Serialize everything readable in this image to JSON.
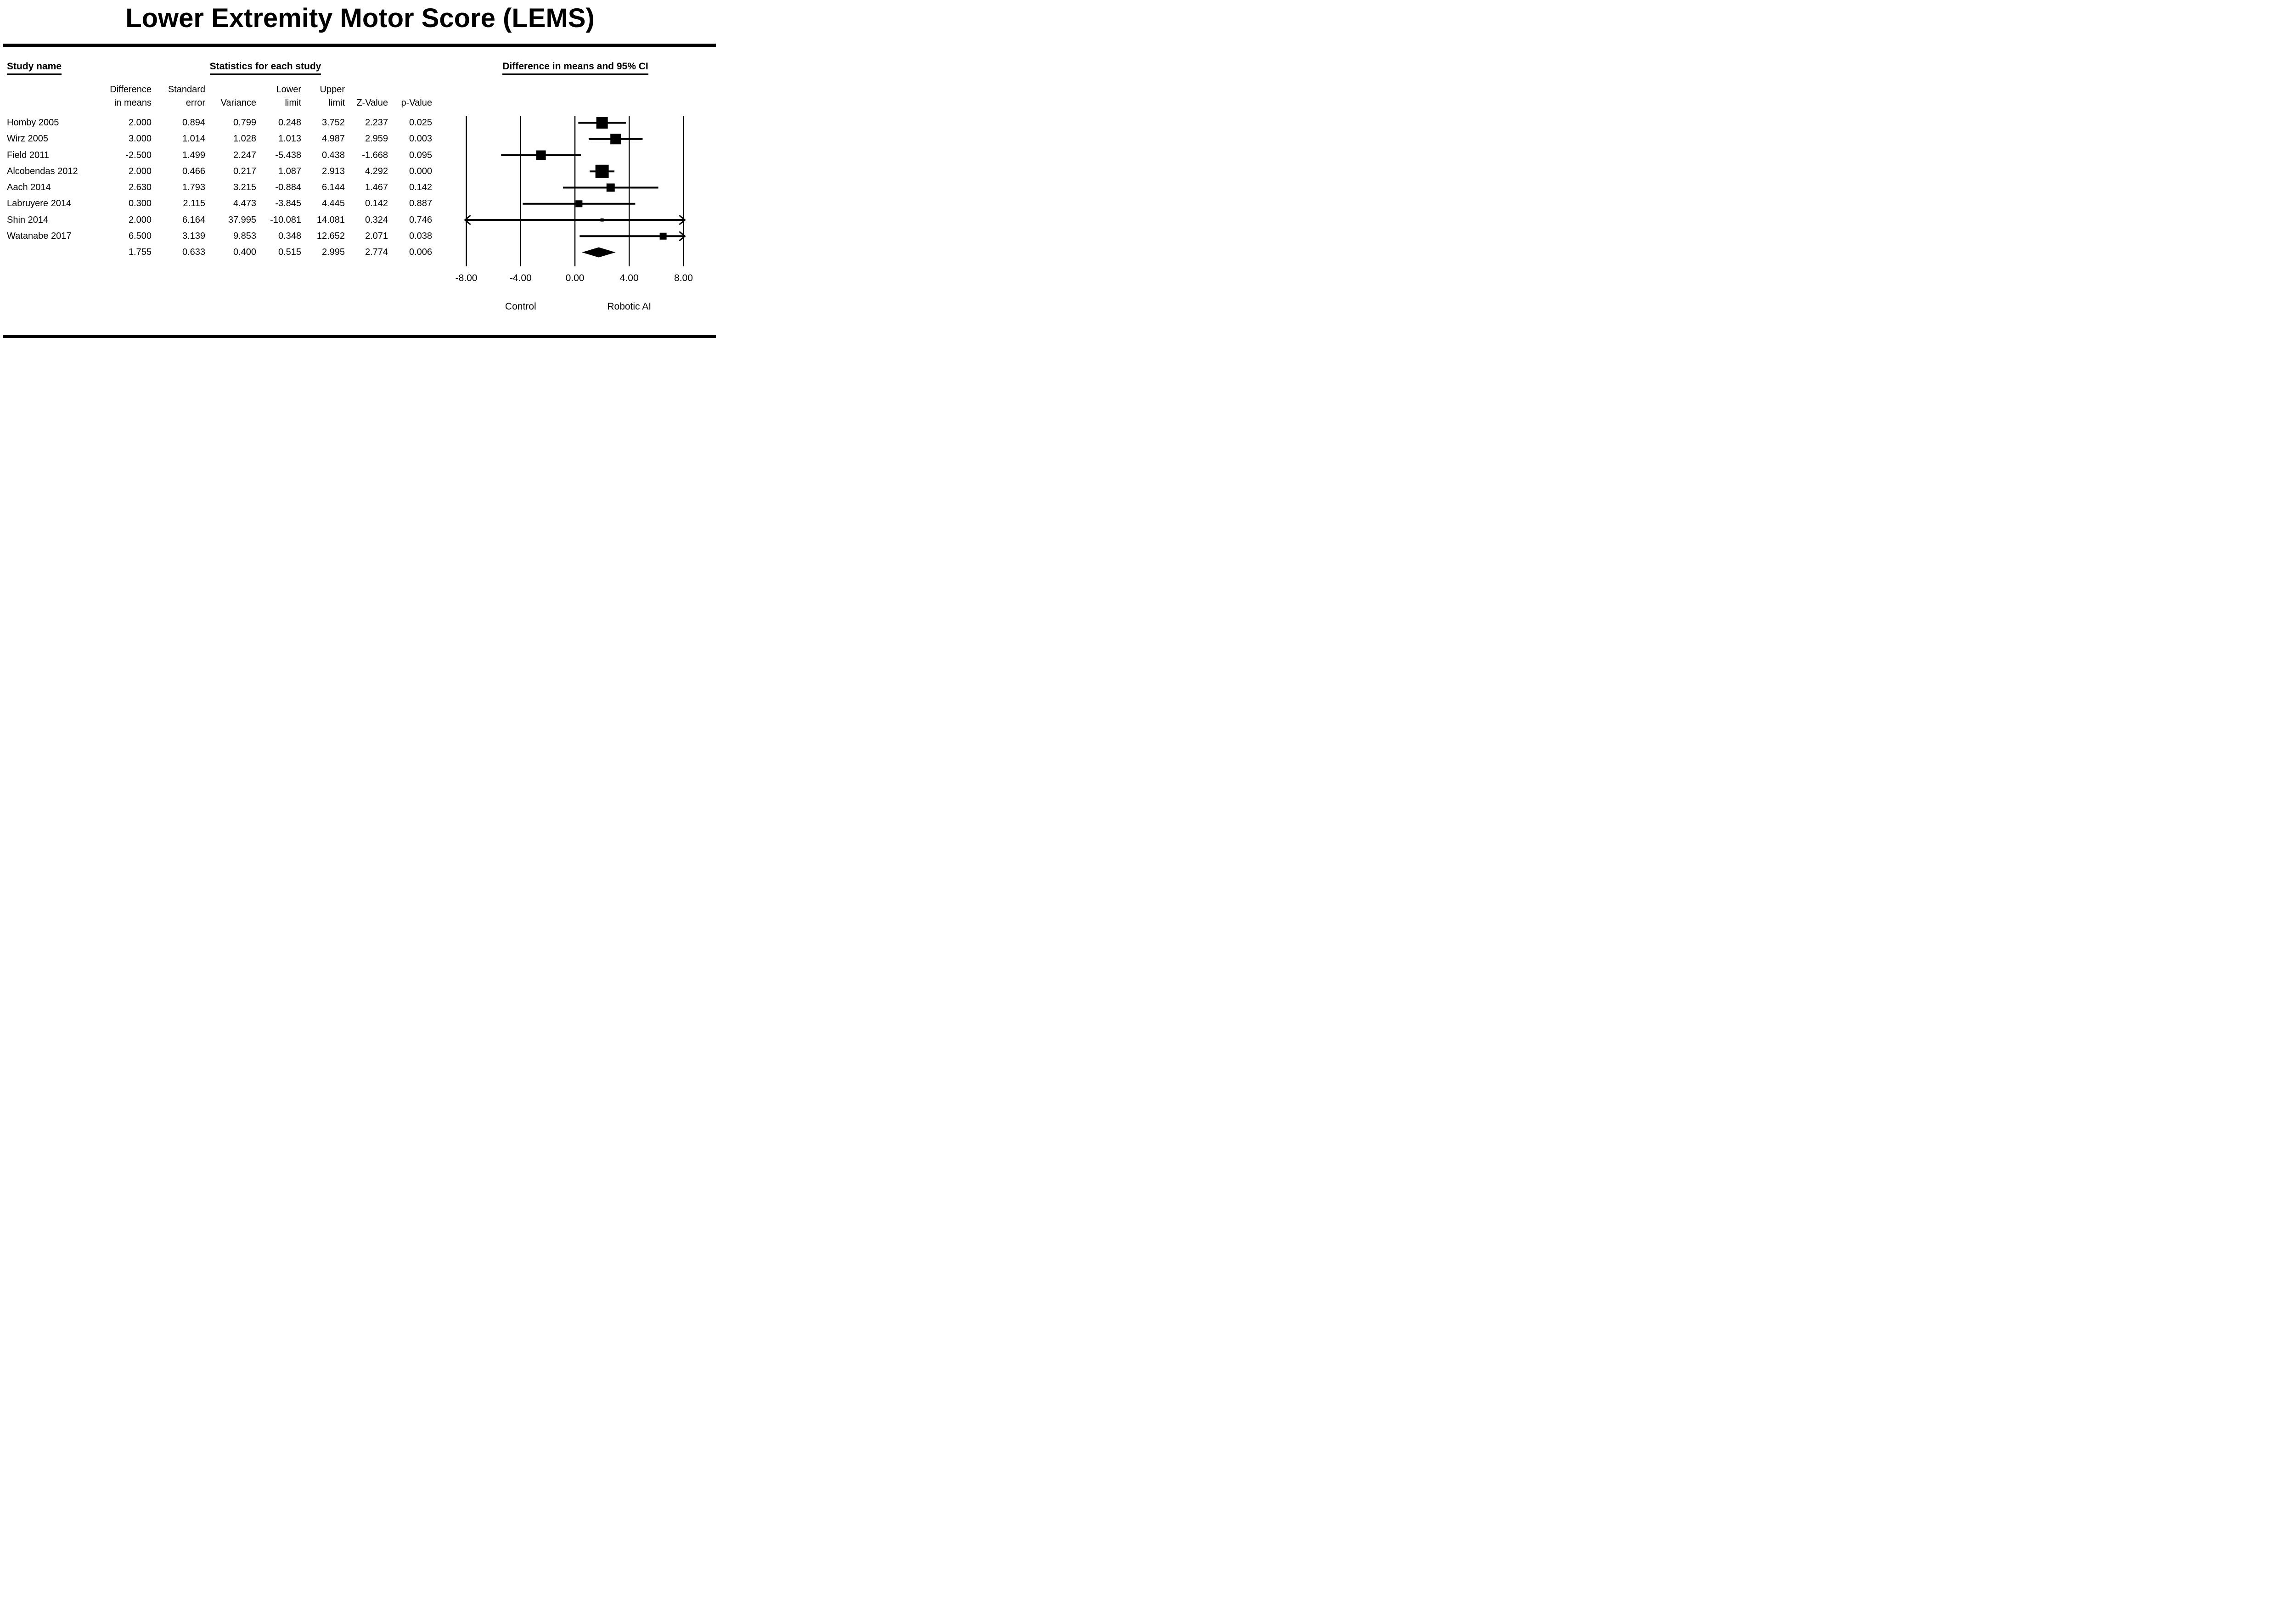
{
  "chart_data": {
    "type": "forest",
    "title": "Lower Extremity Motor Score (LEMS)",
    "headers": {
      "study": "Study name",
      "stats": "Statistics for each study",
      "ci": "Difference in means and 95% CI"
    },
    "columns": [
      {
        "l1": "Difference",
        "l2": "in means"
      },
      {
        "l1": "Standard",
        "l2": "error"
      },
      {
        "l1": "",
        "l2": "Variance"
      },
      {
        "l1": "Lower",
        "l2": "limit"
      },
      {
        "l1": "Upper",
        "l2": "limit"
      },
      {
        "l1": "",
        "l2": "Z-Value"
      },
      {
        "l1": "",
        "l2": "p-Value"
      }
    ],
    "col_keys": [
      "diff",
      "se",
      "variance",
      "lower",
      "upper",
      "z",
      "p"
    ],
    "studies": [
      {
        "name": "Homby 2005",
        "diff": "2.000",
        "se": "0.894",
        "variance": "0.799",
        "lower": "0.248",
        "upper": "3.752",
        "z": "2.237",
        "p": "0.025",
        "point": 2.0,
        "lo": 0.248,
        "hi": 3.752,
        "marker_size": 25
      },
      {
        "name": "Wirz 2005",
        "diff": "3.000",
        "se": "1.014",
        "variance": "1.028",
        "lower": "1.013",
        "upper": "4.987",
        "z": "2.959",
        "p": "0.003",
        "point": 3.0,
        "lo": 1.013,
        "hi": 4.987,
        "marker_size": 23
      },
      {
        "name": "Field 2011",
        "diff": "-2.500",
        "se": "1.499",
        "variance": "2.247",
        "lower": "-5.438",
        "upper": "0.438",
        "z": "-1.668",
        "p": "0.095",
        "point": -2.5,
        "lo": -5.438,
        "hi": 0.438,
        "marker_size": 21
      },
      {
        "name": "Alcobendas 2012",
        "diff": "2.000",
        "se": "0.466",
        "variance": "0.217",
        "lower": "1.087",
        "upper": "2.913",
        "z": "4.292",
        "p": "0.000",
        "point": 2.0,
        "lo": 1.087,
        "hi": 2.913,
        "marker_size": 29
      },
      {
        "name": "Aach 2014",
        "diff": "2.630",
        "se": "1.793",
        "variance": "3.215",
        "lower": "-0.884",
        "upper": "6.144",
        "z": "1.467",
        "p": "0.142",
        "point": 2.63,
        "lo": -0.884,
        "hi": 6.144,
        "marker_size": 18
      },
      {
        "name": "Labruyere 2014",
        "diff": "0.300",
        "se": "2.115",
        "variance": "4.473",
        "lower": "-3.845",
        "upper": "4.445",
        "z": "0.142",
        "p": "0.887",
        "point": 0.3,
        "lo": -3.845,
        "hi": 4.445,
        "marker_size": 15
      },
      {
        "name": "Shin 2014",
        "diff": "2.000",
        "se": "6.164",
        "variance": "37.995",
        "lower": "-10.081",
        "upper": "14.081",
        "z": "0.324",
        "p": "0.746",
        "point": 2.0,
        "lo": -10.081,
        "hi": 14.081,
        "marker_size": 7
      },
      {
        "name": "Watanabe 2017",
        "diff": "6.500",
        "se": "3.139",
        "variance": "9.853",
        "lower": "0.348",
        "upper": "12.652",
        "z": "2.071",
        "p": "0.038",
        "point": 6.5,
        "lo": 0.348,
        "hi": 12.652,
        "marker_size": 15
      }
    ],
    "summary": {
      "name": "",
      "diff": "1.755",
      "se": "0.633",
      "variance": "0.400",
      "lower": "0.515",
      "upper": "2.995",
      "z": "2.774",
      "p": "0.006",
      "point": 1.755,
      "lo": 0.515,
      "hi": 2.995
    },
    "axis": {
      "min": -8,
      "max": 8,
      "ticks": [
        {
          "value": -8,
          "label": "-8.00"
        },
        {
          "value": -4,
          "label": "-4.00"
        },
        {
          "value": 0,
          "label": "0.00"
        },
        {
          "value": 4,
          "label": "4.00"
        },
        {
          "value": 8,
          "label": "8.00"
        }
      ]
    },
    "footer_labels": {
      "left": "Control",
      "right": "Robotic AI"
    }
  }
}
